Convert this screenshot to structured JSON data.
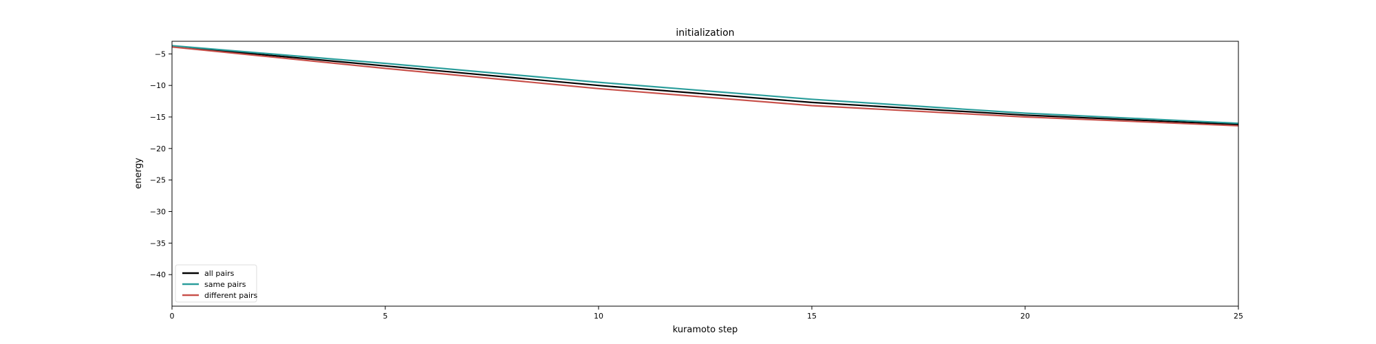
{
  "chart_data": {
    "type": "line",
    "title": "initialization",
    "xlabel": "kuramoto step",
    "ylabel": "energy",
    "xlim": [
      0,
      25
    ],
    "ylim": [
      -45,
      -3
    ],
    "xticks": [
      0,
      5,
      10,
      15,
      20,
      25
    ],
    "yticks": [
      -5,
      -10,
      -15,
      -20,
      -25,
      -30,
      -35,
      -40
    ],
    "ytick_labels": [
      "−5",
      "−10",
      "−15",
      "−20",
      "−25",
      "−30",
      "−35",
      "−40"
    ],
    "grid": false,
    "legend_position": "lower-left",
    "x": [
      0,
      5,
      10,
      15,
      20,
      25
    ],
    "series": [
      {
        "name": "all pairs",
        "color": "#000000",
        "values": [
          -3.8,
          -6.9,
          -10.0,
          -12.7,
          -14.7,
          -16.2
        ]
      },
      {
        "name": "same pairs",
        "color": "#2a9d9b",
        "values": [
          -3.7,
          -6.5,
          -9.5,
          -12.2,
          -14.4,
          -16.0
        ]
      },
      {
        "name": "different pairs",
        "color": "#c8504a",
        "values": [
          -3.9,
          -7.3,
          -10.5,
          -13.2,
          -15.0,
          -16.4
        ]
      }
    ]
  }
}
